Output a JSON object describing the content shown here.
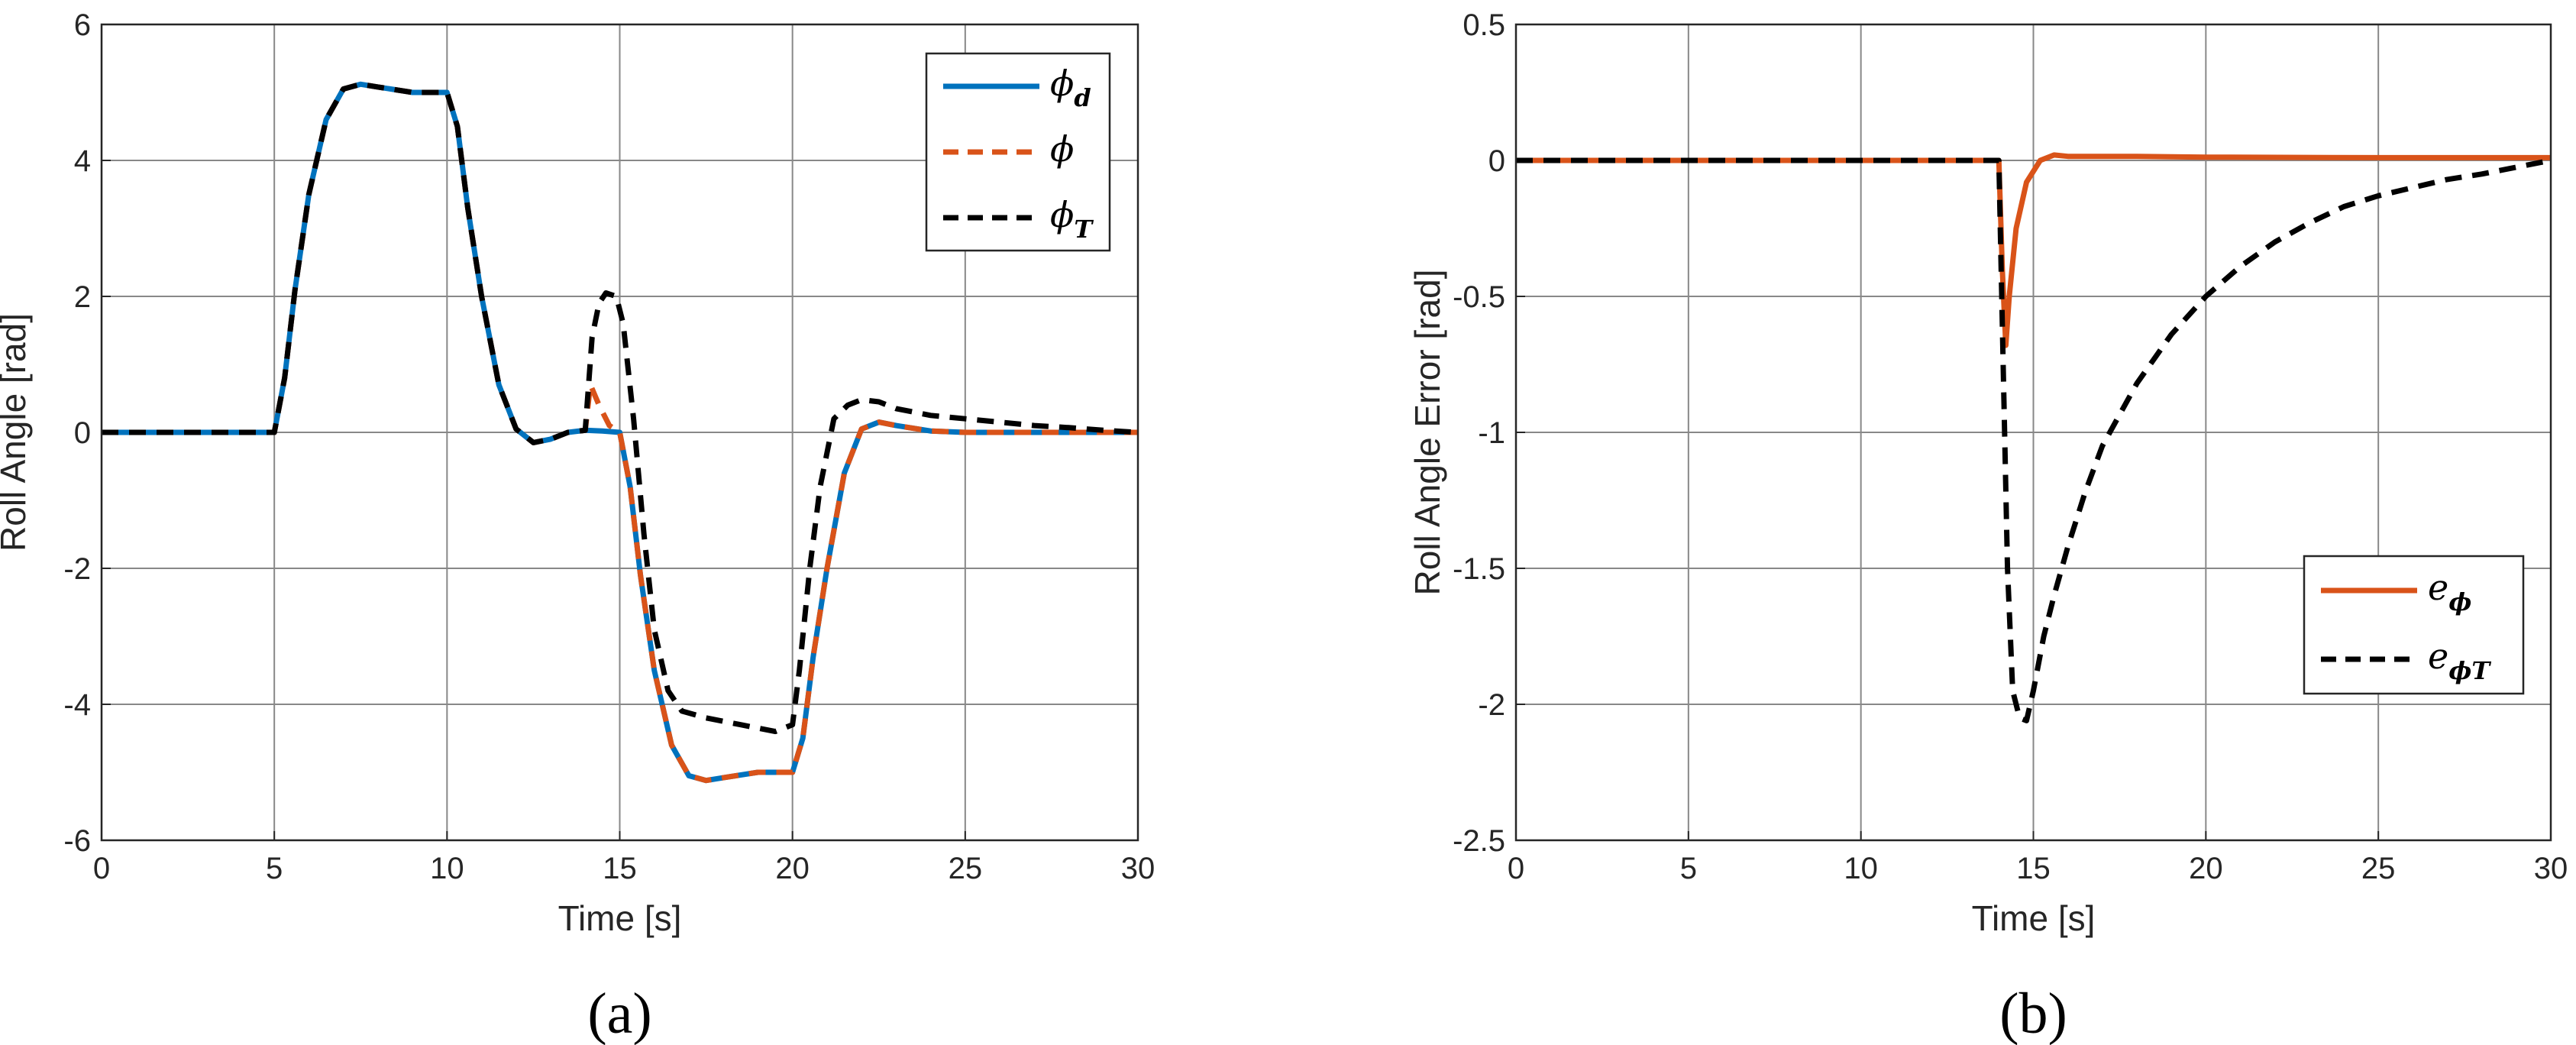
{
  "chart_data": [
    {
      "type": "line",
      "panel_label": "(a)",
      "xlabel": "Time [s]",
      "ylabel": "Roll Angle [rad]",
      "xlim": [
        0,
        30
      ],
      "ylim": [
        -6,
        6
      ],
      "xticks": [
        "0",
        "5",
        "10",
        "15",
        "20",
        "25",
        "30"
      ],
      "yticks": [
        "-6",
        "-4",
        "-2",
        "0",
        "2",
        "4",
        "6"
      ],
      "grid": true,
      "legend_position": "top-right",
      "series": [
        {
          "name": "ϕ",
          "name_sub": "d",
          "color": "#0072BD",
          "dash": "solid",
          "points": [
            [
              0,
              0
            ],
            [
              5,
              0
            ],
            [
              5.3,
              0.8
            ],
            [
              5.6,
              2.1
            ],
            [
              6,
              3.5
            ],
            [
              6.5,
              4.6
            ],
            [
              7,
              5.05
            ],
            [
              7.5,
              5.12
            ],
            [
              8,
              5.08
            ],
            [
              9,
              5.0
            ],
            [
              10,
              5.0
            ],
            [
              10.3,
              4.5
            ],
            [
              10.6,
              3.3
            ],
            [
              11,
              2.0
            ],
            [
              11.5,
              0.7
            ],
            [
              12,
              0.05
            ],
            [
              12.5,
              -0.15
            ],
            [
              13,
              -0.1
            ],
            [
              13.5,
              0.0
            ],
            [
              14,
              0.03
            ],
            [
              14.5,
              0.02
            ],
            [
              15,
              0.0
            ],
            [
              15.3,
              -0.8
            ],
            [
              15.6,
              -2.1
            ],
            [
              16,
              -3.5
            ],
            [
              16.5,
              -4.6
            ],
            [
              17,
              -5.05
            ],
            [
              17.5,
              -5.12
            ],
            [
              18,
              -5.08
            ],
            [
              19,
              -5.0
            ],
            [
              20,
              -5.0
            ],
            [
              20.3,
              -4.5
            ],
            [
              20.6,
              -3.3
            ],
            [
              21,
              -2.0
            ],
            [
              21.5,
              -0.6
            ],
            [
              22,
              0.05
            ],
            [
              22.5,
              0.15
            ],
            [
              23,
              0.1
            ],
            [
              24,
              0.02
            ],
            [
              25,
              0.0
            ],
            [
              30,
              0.0
            ]
          ]
        },
        {
          "name": "ϕ",
          "name_sub": "",
          "color": "#D95319",
          "dash": "dashed",
          "points": [
            [
              0,
              0
            ],
            [
              5,
              0
            ],
            [
              5.3,
              0.8
            ],
            [
              5.6,
              2.1
            ],
            [
              6,
              3.5
            ],
            [
              6.5,
              4.6
            ],
            [
              7,
              5.05
            ],
            [
              7.5,
              5.12
            ],
            [
              8,
              5.08
            ],
            [
              9,
              5.0
            ],
            [
              10,
              5.0
            ],
            [
              10.3,
              4.5
            ],
            [
              10.6,
              3.3
            ],
            [
              11,
              2.0
            ],
            [
              11.5,
              0.7
            ],
            [
              12,
              0.05
            ],
            [
              12.5,
              -0.15
            ],
            [
              13,
              -0.1
            ],
            [
              13.5,
              0.0
            ],
            [
              14,
              0.03
            ],
            [
              14.15,
              0.7
            ],
            [
              14.4,
              0.4
            ],
            [
              14.7,
              0.1
            ],
            [
              15,
              0.0
            ],
            [
              15.3,
              -0.8
            ],
            [
              15.6,
              -2.1
            ],
            [
              16,
              -3.5
            ],
            [
              16.5,
              -4.6
            ],
            [
              17,
              -5.05
            ],
            [
              17.5,
              -5.12
            ],
            [
              18,
              -5.08
            ],
            [
              19,
              -5.0
            ],
            [
              20,
              -5.0
            ],
            [
              20.3,
              -4.5
            ],
            [
              20.6,
              -3.3
            ],
            [
              21,
              -2.0
            ],
            [
              21.5,
              -0.6
            ],
            [
              22,
              0.05
            ],
            [
              22.5,
              0.15
            ],
            [
              23,
              0.1
            ],
            [
              24,
              0.02
            ],
            [
              25,
              0.0
            ],
            [
              30,
              0.0
            ]
          ]
        },
        {
          "name": "ϕ",
          "name_sub": "T",
          "color": "#000000",
          "dash": "dashed",
          "points": [
            [
              0,
              0
            ],
            [
              5,
              0
            ],
            [
              5.3,
              0.8
            ],
            [
              5.6,
              2.1
            ],
            [
              6,
              3.5
            ],
            [
              6.5,
              4.6
            ],
            [
              7,
              5.05
            ],
            [
              7.5,
              5.12
            ],
            [
              8,
              5.08
            ],
            [
              9,
              5.0
            ],
            [
              10,
              5.0
            ],
            [
              10.3,
              4.5
            ],
            [
              10.6,
              3.3
            ],
            [
              11,
              2.0
            ],
            [
              11.5,
              0.7
            ],
            [
              12,
              0.05
            ],
            [
              12.5,
              -0.15
            ],
            [
              13,
              -0.1
            ],
            [
              13.5,
              0.0
            ],
            [
              14,
              0.03
            ],
            [
              14.2,
              1.4
            ],
            [
              14.4,
              1.9
            ],
            [
              14.6,
              2.05
            ],
            [
              14.9,
              2.0
            ],
            [
              15.1,
              1.6
            ],
            [
              15.4,
              0.2
            ],
            [
              15.7,
              -1.5
            ],
            [
              16,
              -2.9
            ],
            [
              16.4,
              -3.8
            ],
            [
              16.8,
              -4.1
            ],
            [
              17.5,
              -4.2
            ],
            [
              18.5,
              -4.3
            ],
            [
              19.5,
              -4.4
            ],
            [
              20,
              -4.3
            ],
            [
              20.2,
              -3.5
            ],
            [
              20.5,
              -2.0
            ],
            [
              20.8,
              -0.8
            ],
            [
              21.2,
              0.2
            ],
            [
              21.6,
              0.4
            ],
            [
              22,
              0.48
            ],
            [
              22.5,
              0.45
            ],
            [
              23,
              0.35
            ],
            [
              24,
              0.25
            ],
            [
              25,
              0.2
            ],
            [
              26,
              0.15
            ],
            [
              27,
              0.1
            ],
            [
              28,
              0.07
            ],
            [
              29,
              0.03
            ],
            [
              30,
              0.0
            ]
          ]
        }
      ]
    },
    {
      "type": "line",
      "panel_label": "(b)",
      "xlabel": "Time [s]",
      "ylabel": "Roll Angle Error [rad]",
      "xlim": [
        0,
        30
      ],
      "ylim": [
        -2.5,
        0.5
      ],
      "xticks": [
        "0",
        "5",
        "10",
        "15",
        "20",
        "25",
        "30"
      ],
      "yticks": [
        "-2.5",
        "-2",
        "-1.5",
        "-1",
        "-0.5",
        "0",
        "0.5"
      ],
      "grid": true,
      "legend_position": "bottom-right",
      "series": [
        {
          "name": "e",
          "name_sub": "ϕ",
          "color": "#D95319",
          "dash": "solid",
          "points": [
            [
              0,
              0
            ],
            [
              14,
              0
            ],
            [
              14.1,
              -0.4
            ],
            [
              14.2,
              -0.68
            ],
            [
              14.3,
              -0.5
            ],
            [
              14.5,
              -0.25
            ],
            [
              14.8,
              -0.08
            ],
            [
              15.2,
              0.0
            ],
            [
              15.6,
              0.02
            ],
            [
              16,
              0.015
            ],
            [
              18,
              0.015
            ],
            [
              20,
              0.012
            ],
            [
              25,
              0.01
            ],
            [
              30,
              0.01
            ]
          ]
        },
        {
          "name": "e",
          "name_sub": "ϕT",
          "color": "#000000",
          "dash": "dashed",
          "points": [
            [
              0,
              0
            ],
            [
              14,
              0
            ],
            [
              14.1,
              -0.6
            ],
            [
              14.25,
              -1.5
            ],
            [
              14.4,
              -1.95
            ],
            [
              14.6,
              -2.05
            ],
            [
              14.8,
              -2.06
            ],
            [
              15,
              -1.95
            ],
            [
              15.3,
              -1.75
            ],
            [
              15.6,
              -1.6
            ],
            [
              16,
              -1.42
            ],
            [
              16.5,
              -1.22
            ],
            [
              17,
              -1.05
            ],
            [
              18,
              -0.82
            ],
            [
              19,
              -0.64
            ],
            [
              20,
              -0.5
            ],
            [
              21,
              -0.39
            ],
            [
              22,
              -0.3
            ],
            [
              23,
              -0.23
            ],
            [
              24,
              -0.17
            ],
            [
              25,
              -0.13
            ],
            [
              26,
              -0.1
            ],
            [
              27,
              -0.07
            ],
            [
              28,
              -0.05
            ],
            [
              29,
              -0.025
            ],
            [
              30,
              0.0
            ]
          ]
        }
      ]
    }
  ]
}
